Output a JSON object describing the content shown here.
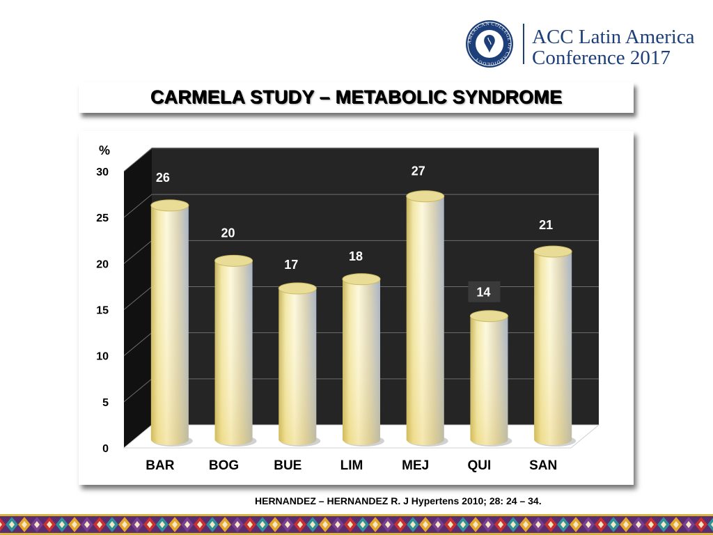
{
  "header": {
    "logo_seal_text": "AMERICAN COLLEGE OF CARDIOLOGY",
    "logo_line1": "ACC Latin America",
    "logo_line2": "Conference 2017"
  },
  "slide_title": "CARMELA STUDY – METABOLIC SYNDROME",
  "citation": "HERNANDEZ – HERNANDEZ R. J Hypertens 2010; 28: 24 – 34.",
  "colors": {
    "brand_blue": "#1c3f7a",
    "plot_background": "#252525",
    "bar_gold": "#e9d97a",
    "bar_highlight": "#fdf8dc"
  },
  "chart_data": {
    "type": "bar",
    "style": "3d-cylinder",
    "categories": [
      "BAR",
      "BOG",
      "BUE",
      "LIM",
      "MEJ",
      "QUI",
      "SAN"
    ],
    "values": [
      26,
      20,
      17,
      18,
      27,
      14,
      21
    ],
    "data_labels": [
      "26",
      "20",
      "17",
      "18",
      "27",
      "14",
      "21"
    ],
    "ylabel": "%",
    "ylim": [
      0,
      30
    ],
    "yticks": [
      "0",
      "5",
      "10",
      "15",
      "20",
      "25",
      "30"
    ],
    "grid": true,
    "legend": "none"
  }
}
